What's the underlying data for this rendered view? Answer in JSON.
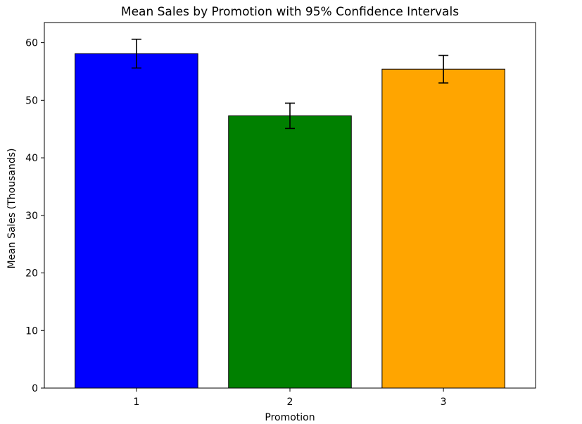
{
  "chart_data": {
    "type": "bar",
    "title": "Mean Sales by Promotion with 95% Confidence Intervals",
    "xlabel": "Promotion",
    "ylabel": "Mean Sales (Thousands)",
    "categories": [
      "1",
      "2",
      "3"
    ],
    "values": [
      58.1,
      47.3,
      55.4
    ],
    "error_lower": [
      55.6,
      45.1,
      53.0
    ],
    "error_upper": [
      60.6,
      49.5,
      57.8
    ],
    "bar_colors": [
      "#0000ff",
      "#008000",
      "#ffa500"
    ],
    "edge_color": "#000000",
    "ylim": [
      0,
      63.5
    ],
    "yticks": [
      0,
      10,
      20,
      30,
      40,
      50,
      60
    ],
    "grid": false,
    "legend": "none"
  }
}
